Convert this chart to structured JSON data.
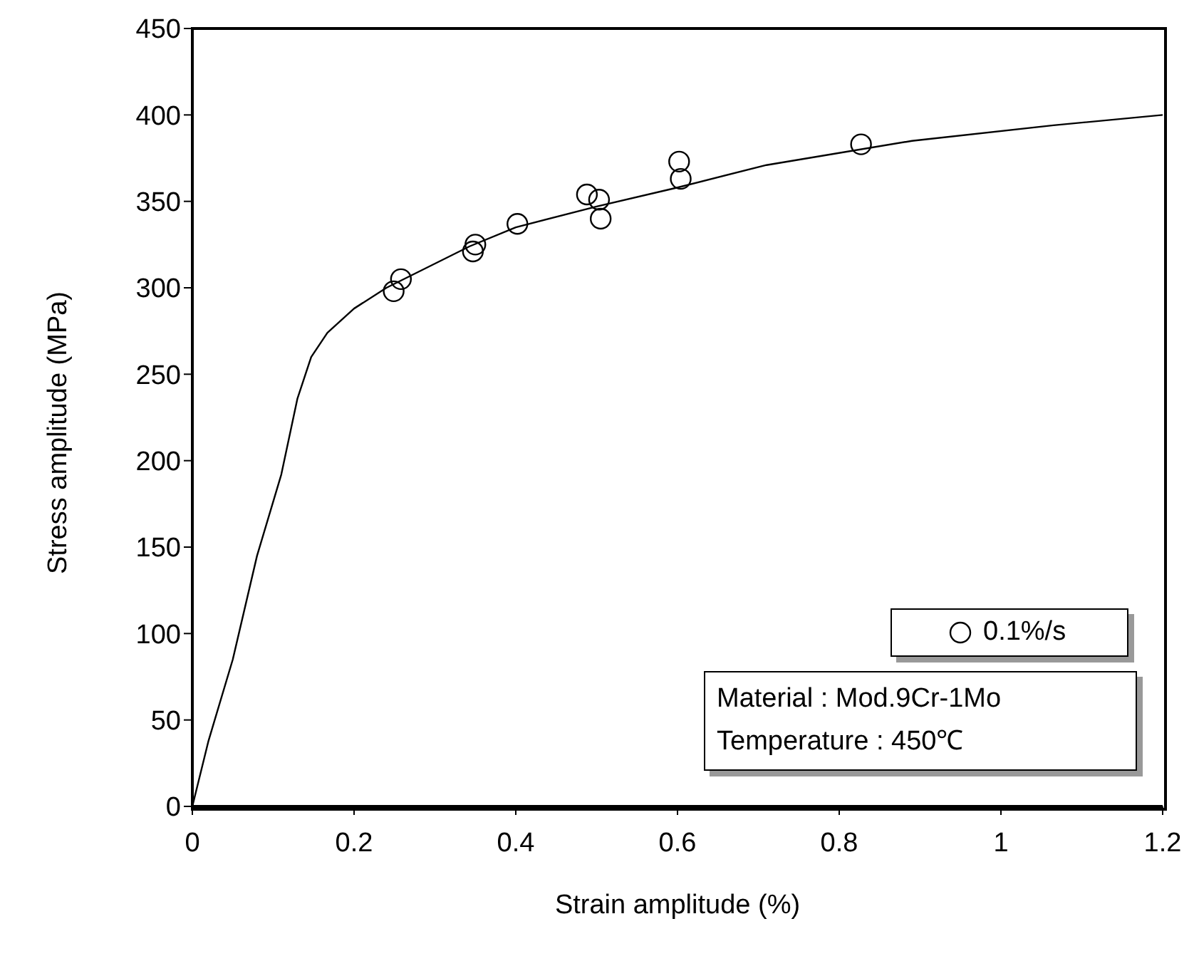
{
  "chart_data": {
    "type": "scatter",
    "xlabel": "Strain amplitude (%)",
    "ylabel": "Stress amplitude (MPa)",
    "xlim": [
      0,
      1.2
    ],
    "xticks": [
      0,
      0.2,
      0.4,
      0.6,
      0.8,
      1,
      1.2
    ],
    "ylim": [
      0,
      450
    ],
    "yticks": [
      0,
      50,
      100,
      150,
      200,
      250,
      300,
      350,
      400,
      450
    ],
    "grid": false,
    "legend": "bottom right",
    "annotations": [
      "Material : Mod.9Cr-1Mo",
      "Temperature : 450℃"
    ],
    "series": [
      {
        "name": "0.1%/s",
        "marker": "circle",
        "color": "#000000",
        "x": [
          0.249,
          0.258,
          0.347,
          0.35,
          0.402,
          0.488,
          0.503,
          0.505,
          0.602,
          0.604,
          0.827
        ],
        "values": [
          298,
          305,
          321,
          325,
          337,
          354,
          351,
          340,
          373,
          363,
          383
        ]
      },
      {
        "type": "line",
        "marker": "none",
        "color": "#000000",
        "x": [
          0,
          0.02,
          0.05,
          0.08,
          0.11,
          0.13,
          0.147,
          0.167,
          0.2,
          0.24,
          0.343,
          0.4,
          0.5,
          0.6,
          0.71,
          0.89,
          1.065,
          1.2
        ],
        "values": [
          0,
          38,
          85,
          145,
          192,
          236,
          260,
          274,
          288,
          300,
          324,
          335,
          347,
          358,
          371,
          385,
          394,
          400
        ]
      }
    ]
  }
}
